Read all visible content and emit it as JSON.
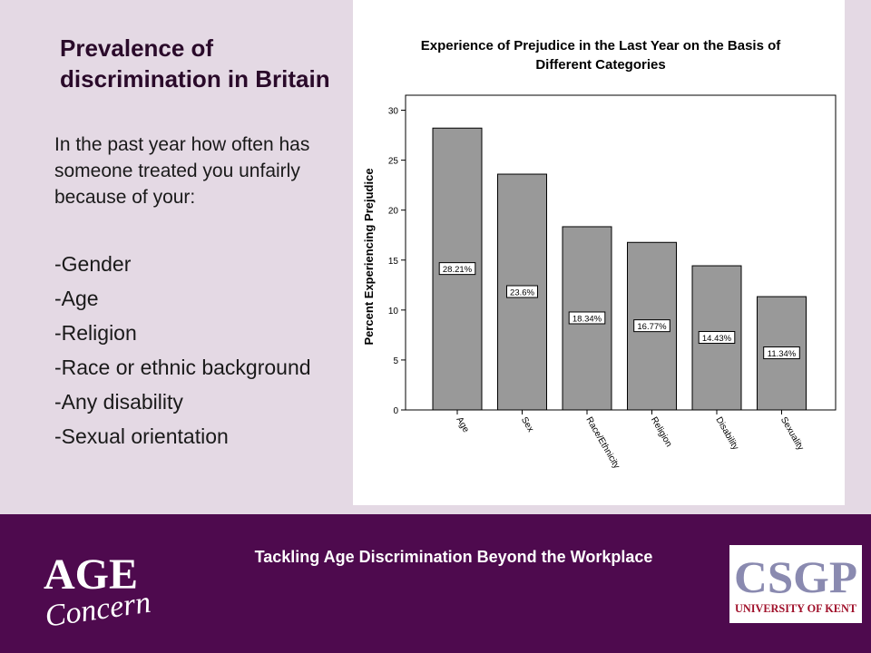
{
  "slide": {
    "title": "Prevalence of discrimination in Britain",
    "question": "In the past year how often has someone treated you unfairly because of your:",
    "list_items": [
      "-Gender",
      "-Age",
      "-Religion",
      "-Race or ethnic background",
      "-Any disability",
      "-Sexual orientation"
    ]
  },
  "footer": {
    "title": "Tackling Age Discrimination Beyond the Workplace",
    "logo_left": {
      "line1": "AGE",
      "line2": "Concern"
    },
    "logo_right": {
      "line1": "CSGP",
      "line2": "UNIVERSITY OF KENT"
    }
  },
  "colors": {
    "background": "#e4d9e4",
    "footer": "#4e0a4e",
    "bar": "#999999",
    "csgp_text": "#8a8ab0",
    "kent_text": "#a0102a"
  },
  "chart_data": {
    "type": "bar",
    "title": "Experience of Prejudice in the Last Year on the Basis of Different Categories",
    "xlabel": "",
    "ylabel": "Percent Experiencing Prejudice",
    "categories": [
      "Age",
      "Sex",
      "Race/Ethnicity",
      "Religion",
      "Disability",
      "Sexuality"
    ],
    "values": [
      28.21,
      23.6,
      18.34,
      16.77,
      14.43,
      11.34
    ],
    "data_labels": [
      "28.21%",
      "23.6%",
      "18.34%",
      "16.77%",
      "14.43%",
      "11.34%"
    ],
    "ylim": [
      0,
      31.5
    ],
    "yticks": [
      0,
      5,
      10,
      15,
      20,
      25,
      30
    ],
    "grid": false,
    "legend": "none"
  }
}
